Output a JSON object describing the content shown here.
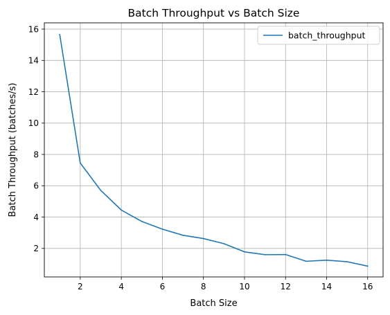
{
  "chart_data": {
    "type": "line",
    "title": "Batch Throughput vs Batch Size",
    "xlabel": "Batch Size",
    "ylabel": "Batch Throughput (batches/s)",
    "xlim": [
      0.25,
      16.75
    ],
    "ylim": [
      0.18,
      16.4
    ],
    "xticks": [
      2,
      4,
      6,
      8,
      10,
      12,
      14,
      16
    ],
    "yticks": [
      2,
      4,
      6,
      8,
      10,
      12,
      14,
      16
    ],
    "grid": true,
    "legend_position": "top-right",
    "series": [
      {
        "name": "batch_throughput",
        "color": "#1f77b4",
        "x": [
          1,
          2,
          3,
          4,
          5,
          6,
          7,
          8,
          9,
          10,
          11,
          12,
          13,
          14,
          15,
          16
        ],
        "y": [
          15.65,
          7.45,
          5.7,
          4.45,
          3.72,
          3.23,
          2.84,
          2.63,
          2.3,
          1.78,
          1.6,
          1.61,
          1.18,
          1.25,
          1.15,
          0.87
        ]
      }
    ]
  }
}
